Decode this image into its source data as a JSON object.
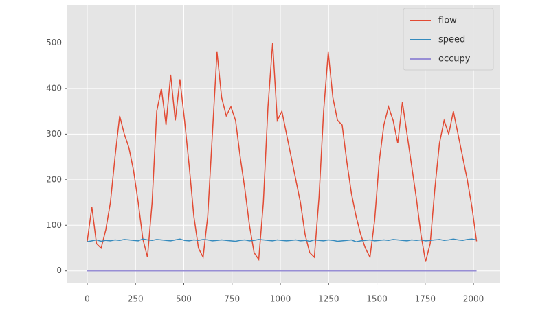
{
  "chart_data": {
    "type": "line",
    "x": [
      0,
      24,
      48,
      72,
      96,
      120,
      144,
      168,
      192,
      216,
      240,
      264,
      288,
      312,
      336,
      360,
      384,
      408,
      432,
      456,
      480,
      504,
      528,
      552,
      576,
      600,
      624,
      648,
      672,
      696,
      720,
      744,
      768,
      792,
      816,
      840,
      864,
      888,
      912,
      936,
      960,
      984,
      1008,
      1032,
      1056,
      1080,
      1104,
      1128,
      1152,
      1176,
      1200,
      1224,
      1248,
      1272,
      1296,
      1320,
      1344,
      1368,
      1392,
      1416,
      1440,
      1464,
      1488,
      1512,
      1536,
      1560,
      1584,
      1608,
      1632,
      1656,
      1680,
      1704,
      1728,
      1752,
      1776,
      1800,
      1824,
      1848,
      1872,
      1896,
      1920,
      1944,
      1968,
      1992,
      2016
    ],
    "series": [
      {
        "name": "flow",
        "color": "#E24A33",
        "values": [
          65,
          140,
          60,
          50,
          90,
          150,
          250,
          340,
          300,
          270,
          220,
          150,
          70,
          30,
          150,
          350,
          400,
          320,
          430,
          330,
          420,
          330,
          230,
          120,
          50,
          30,
          120,
          300,
          480,
          380,
          340,
          360,
          330,
          250,
          180,
          100,
          40,
          25,
          150,
          360,
          500,
          330,
          350,
          300,
          250,
          200,
          150,
          80,
          40,
          30,
          160,
          350,
          480,
          380,
          330,
          320,
          240,
          170,
          120,
          80,
          50,
          30,
          110,
          240,
          320,
          360,
          330,
          280,
          370,
          300,
          230,
          160,
          80,
          20,
          60,
          180,
          280,
          330,
          300,
          350,
          300,
          250,
          200,
          140,
          65
        ]
      },
      {
        "name": "speed",
        "color": "#348ABD",
        "values": [
          64,
          66,
          68,
          65,
          67,
          66,
          68,
          67,
          69,
          68,
          67,
          66,
          70,
          68,
          67,
          69,
          68,
          67,
          66,
          68,
          70,
          67,
          66,
          68,
          67,
          69,
          68,
          66,
          67,
          68,
          67,
          66,
          65,
          67,
          68,
          66,
          67,
          69,
          68,
          67,
          66,
          68,
          67,
          66,
          67,
          68,
          66,
          67,
          65,
          68,
          67,
          66,
          68,
          67,
          65,
          66,
          67,
          68,
          64,
          66,
          67,
          68,
          66,
          67,
          68,
          67,
          69,
          68,
          67,
          66,
          68,
          67,
          68,
          66,
          67,
          68,
          69,
          67,
          68,
          70,
          68,
          67,
          69,
          70,
          68
        ]
      },
      {
        "name": "occupy",
        "color": "#988ED5",
        "values": [
          0,
          0,
          0,
          0,
          0,
          0,
          0,
          0,
          0,
          0,
          0,
          0,
          0,
          0,
          0,
          0,
          0,
          0,
          0,
          0,
          0,
          0,
          0,
          0,
          0,
          0,
          0,
          0,
          0,
          0,
          0,
          0,
          0,
          0,
          0,
          0,
          0,
          0,
          0,
          0,
          0,
          0,
          0,
          0,
          0,
          0,
          0,
          0,
          0,
          0,
          0,
          0,
          0,
          0,
          0,
          0,
          0,
          0,
          0,
          0,
          0,
          0,
          0,
          0,
          0,
          0,
          0,
          0,
          0,
          0,
          0,
          0,
          0,
          0,
          0,
          0,
          0,
          0,
          0,
          0,
          0,
          0,
          0,
          0,
          0
        ]
      }
    ],
    "xlim": [
      -103,
      2135
    ],
    "ylim": [
      -26,
      582
    ],
    "xticks": [
      0,
      250,
      500,
      750,
      1000,
      1250,
      1500,
      1750,
      2000
    ],
    "yticks": [
      0,
      100,
      200,
      300,
      400,
      500
    ],
    "grid": true,
    "legend": "upper right"
  }
}
